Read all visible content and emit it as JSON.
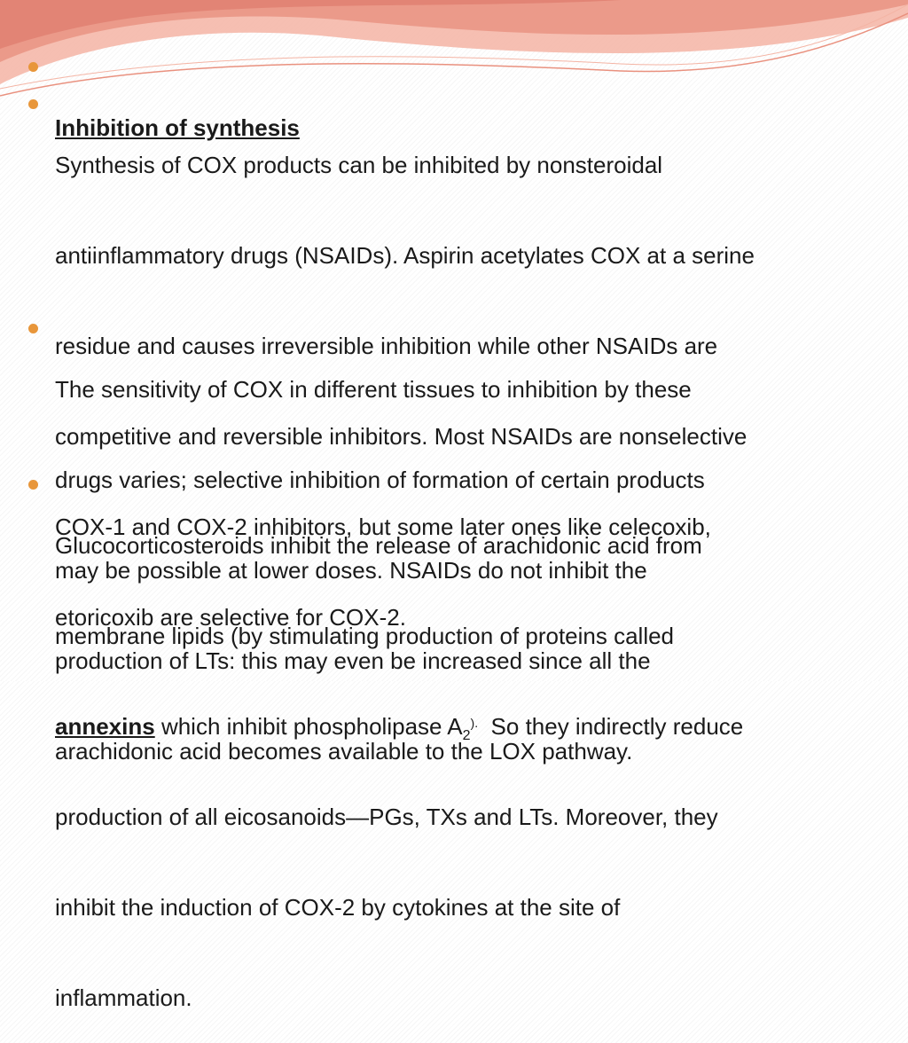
{
  "bullets": [
    {
      "text": "Inhibition of synthesis"
    },
    {
      "lines": [
        "Synthesis of COX products can be inhibited by nonsteroidal",
        "antiinflammatory drugs (NSAIDs). Aspirin acetylates COX at a serine",
        "residue and causes irreversible inhibition while other NSAIDs are",
        "competitive and reversible inhibitors. Most NSAIDs are nonselective",
        "COX-1 and COX-2 inhibitors, but some later ones like celecoxib,",
        "etoricoxib are selective for COX-2."
      ]
    },
    {
      "lines": [
        "The sensitivity of COX in different tissues to inhibition by these",
        "drugs varies; selective inhibition of formation of certain products",
        "may be possible at lower doses. NSAIDs do not inhibit the",
        "production of LTs: this may even be increased since all the",
        "arachidonic acid becomes available to the LOX pathway."
      ]
    },
    {
      "lines": [
        "Glucocorticosteroids inhibit the release of arachidonic acid from",
        "membrane lipids (by stimulating production of proteins called",
        [
          "annexins",
          " which inhibit phospholipase A",
          "2",
          ").",
          "  So they indirectly reduce"
        ],
        "production of all eicosanoids—PGs, TXs and LTs. Moreover, they",
        "inhibit the induction of COX-2 by cytokines at the site of",
        "inflammation."
      ]
    }
  ]
}
